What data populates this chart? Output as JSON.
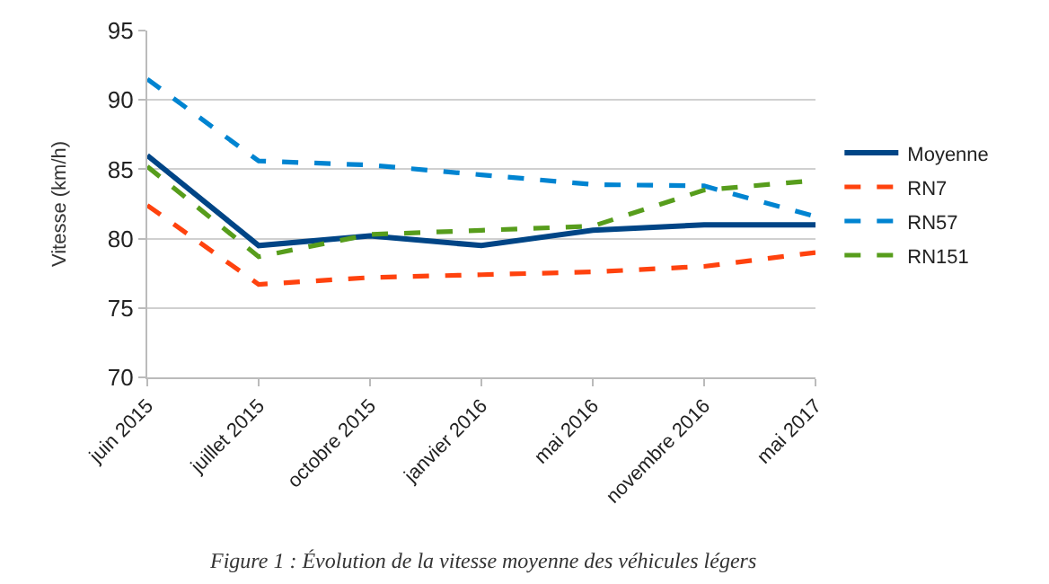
{
  "chart_data": {
    "type": "line",
    "ylabel": "Vitesse (km/h)",
    "categories": [
      "juin 2015",
      "juillet 2015",
      "octobre 2015",
      "janvier 2016",
      "mai 2016",
      "novembre 2016",
      "mai 2017"
    ],
    "series": [
      {
        "name": "Moyenne",
        "color": "#004586",
        "line_style": "solid",
        "values": [
          86.0,
          79.5,
          80.2,
          79.5,
          80.6,
          81.0,
          81.0
        ]
      },
      {
        "name": "RN7",
        "color": "#ff420e",
        "line_style": "dashed",
        "values": [
          82.4,
          76.7,
          77.2,
          77.4,
          77.6,
          78.0,
          79.0
        ]
      },
      {
        "name": "RN57",
        "color": "#0084d1",
        "line_style": "dashed",
        "values": [
          91.5,
          85.6,
          85.3,
          84.6,
          83.9,
          83.8,
          81.6
        ]
      },
      {
        "name": "RN151",
        "color": "#579d1c",
        "line_style": "dashed",
        "values": [
          85.2,
          78.7,
          80.3,
          80.6,
          80.9,
          83.5,
          84.2
        ]
      }
    ],
    "ylim": [
      70,
      95
    ],
    "yticks": [
      70,
      75,
      80,
      85,
      90,
      95
    ],
    "grid": "y",
    "legend": "right",
    "annotations": [
      "Figure 1 : Évolution de la vitesse moyenne des véhicules légers"
    ]
  }
}
